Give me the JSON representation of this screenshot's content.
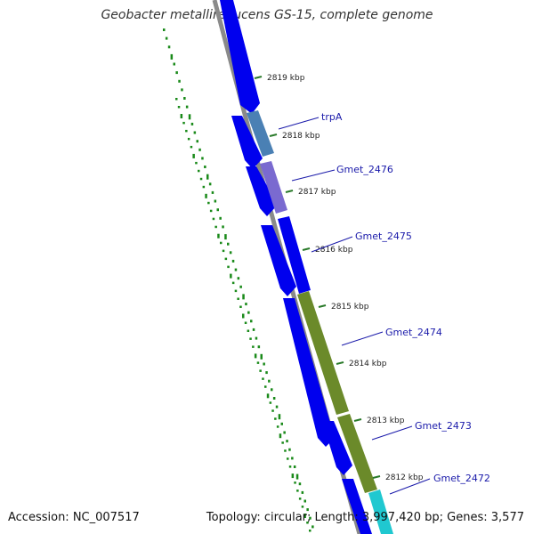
{
  "title": "Geobacter metallireducens GS-15, complete genome",
  "footer": {
    "accession": "Accession: NC_007517",
    "summary": "Topology: circular; Length: 3,997,420 bp; Genes: 3,577"
  },
  "colors": {
    "cds": "#0000ee",
    "backbone": "#8a8a8a",
    "gc_dots": "#1a8a1a",
    "ticks": "#2a7a2a",
    "label": "#1a1aaa"
  },
  "ticks": [
    {
      "label": "2819 kbp"
    },
    {
      "label": "2818 kbp"
    },
    {
      "label": "2817 kbp"
    },
    {
      "label": "2816 kbp"
    },
    {
      "label": "2815 kbp"
    },
    {
      "label": "2814 kbp"
    },
    {
      "label": "2813 kbp"
    },
    {
      "label": "2812 kbp"
    }
  ],
  "gene_labels": [
    {
      "name": "trpA",
      "color": "#4a80b4"
    },
    {
      "name": "Gmet_2476",
      "color": "#7a6ad0"
    },
    {
      "name": "Gmet_2475",
      "color": "#0000ee"
    },
    {
      "name": "Gmet_2474",
      "color": "#6b8a2a"
    },
    {
      "name": "Gmet_2473",
      "color": "#6b8a2a"
    },
    {
      "name": "Gmet_2472",
      "color": "#20c8d0"
    }
  ]
}
